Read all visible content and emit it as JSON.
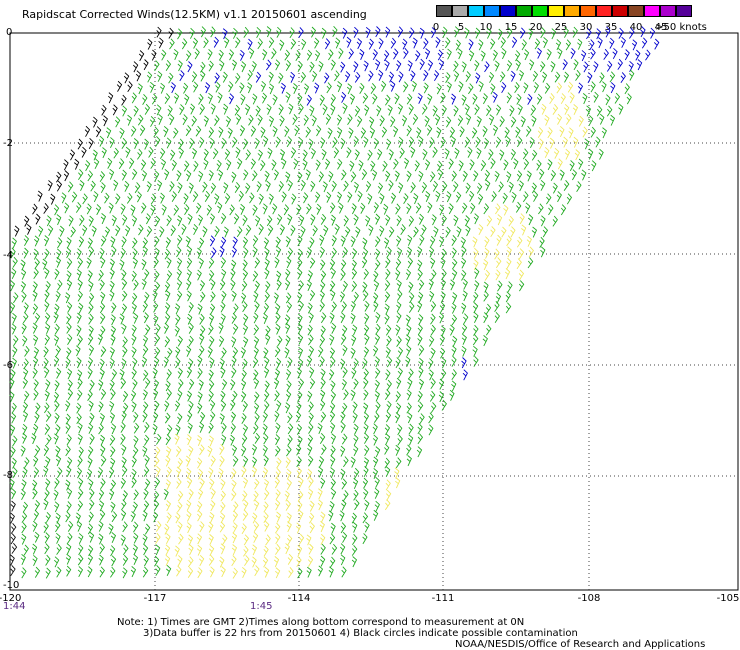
{
  "title": "Rapidscat Corrected Winds(12.5KM) v1.1 20150601 ascending",
  "colorbar": {
    "unit": "knots",
    "colors": [
      "#555555",
      "#aaaaaa",
      "#00ccff",
      "#0088ff",
      "#0000cc",
      "#00aa00",
      "#00dd00",
      "#ffee00",
      "#ffaa00",
      "#ff6600",
      "#ff2222",
      "#cc0000",
      "#884422",
      "#ff00ff",
      "#aa00cc",
      "#550099"
    ],
    "labels": [
      "0",
      "5",
      "10",
      "15",
      "20",
      "25",
      "30",
      "35",
      "40",
      "45",
      ">50 knots"
    ]
  },
  "axes": {
    "y_labels": [
      "0",
      "-2",
      "-4",
      "-6",
      "-8",
      "-10"
    ],
    "x_labels": [
      "-120",
      "-117",
      "-114",
      "-111",
      "-108",
      "-105"
    ]
  },
  "times": [
    "1:44",
    "1:45"
  ],
  "notes": [
    "Note: 1) Times are GMT 2)Times along bottom correspond to measurement at 0N",
    "3)Data buffer is 22 hrs from 20150601 4) Black circles indicate possible contamination",
    "NOAA/NESDIS/Office of Research and Applications"
  ]
}
